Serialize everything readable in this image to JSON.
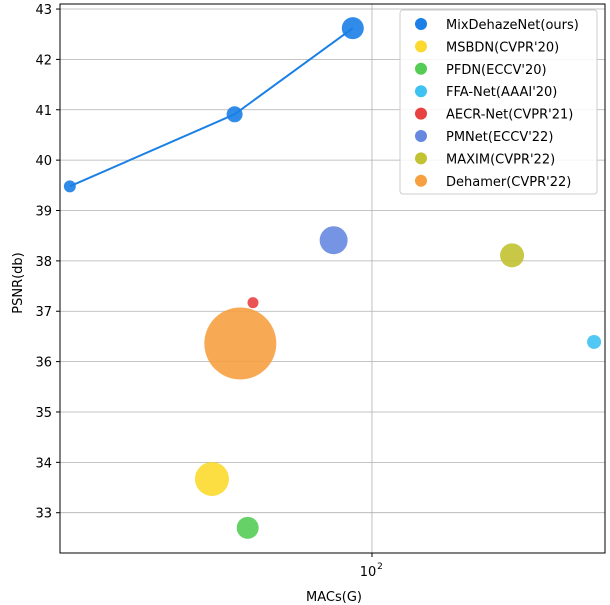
{
  "chart_data": {
    "type": "scatter",
    "title": "",
    "xlabel": "MACs(G)",
    "ylabel": "PSNR(db)",
    "x_scale": "log",
    "xlim": [
      18,
      360
    ],
    "ylim": [
      32.2,
      43.1
    ],
    "x_ticks": [
      {
        "value": 100,
        "label": "10",
        "exponent": "2"
      }
    ],
    "y_ticks": [
      33,
      34,
      35,
      36,
      37,
      38,
      39,
      40,
      41,
      42,
      43
    ],
    "grid": true,
    "legend_position": "top-right",
    "series": [
      {
        "name": "MixDehazeNet(ours)",
        "color": "#1a80e6",
        "line": true,
        "points": [
          {
            "x": 19.0,
            "y": 39.48,
            "size": 6
          },
          {
            "x": 47.0,
            "y": 40.91,
            "size": 8
          },
          {
            "x": 90.0,
            "y": 42.62,
            "size": 11
          }
        ]
      },
      {
        "name": "MSBDN(CVPR'20)",
        "color": "#fcd92e",
        "points": [
          {
            "x": 41.5,
            "y": 33.67,
            "size": 17
          }
        ]
      },
      {
        "name": "PFDN(ECCV'20)",
        "color": "#55cc55",
        "points": [
          {
            "x": 50.5,
            "y": 32.7,
            "size": 11
          }
        ]
      },
      {
        "name": "FFA-Net(AAAI'20)",
        "color": "#3ec2f2",
        "points": [
          {
            "x": 339.0,
            "y": 36.39,
            "size": 7
          }
        ]
      },
      {
        "name": "AECR-Net(CVPR'21)",
        "color": "#e84141",
        "points": [
          {
            "x": 52.0,
            "y": 37.17,
            "size": 5.5
          }
        ]
      },
      {
        "name": "PMNet(ECCV'22)",
        "color": "#6688e0",
        "points": [
          {
            "x": 81.0,
            "y": 38.41,
            "size": 14
          }
        ]
      },
      {
        "name": "MAXIM(CVPR'22)",
        "color": "#c2c232",
        "points": [
          {
            "x": 216.0,
            "y": 38.11,
            "size": 12
          }
        ]
      },
      {
        "name": "Dehamer(CVPR'22)",
        "color": "#f6a040",
        "points": [
          {
            "x": 48.5,
            "y": 36.36,
            "size": 36
          }
        ]
      }
    ]
  }
}
